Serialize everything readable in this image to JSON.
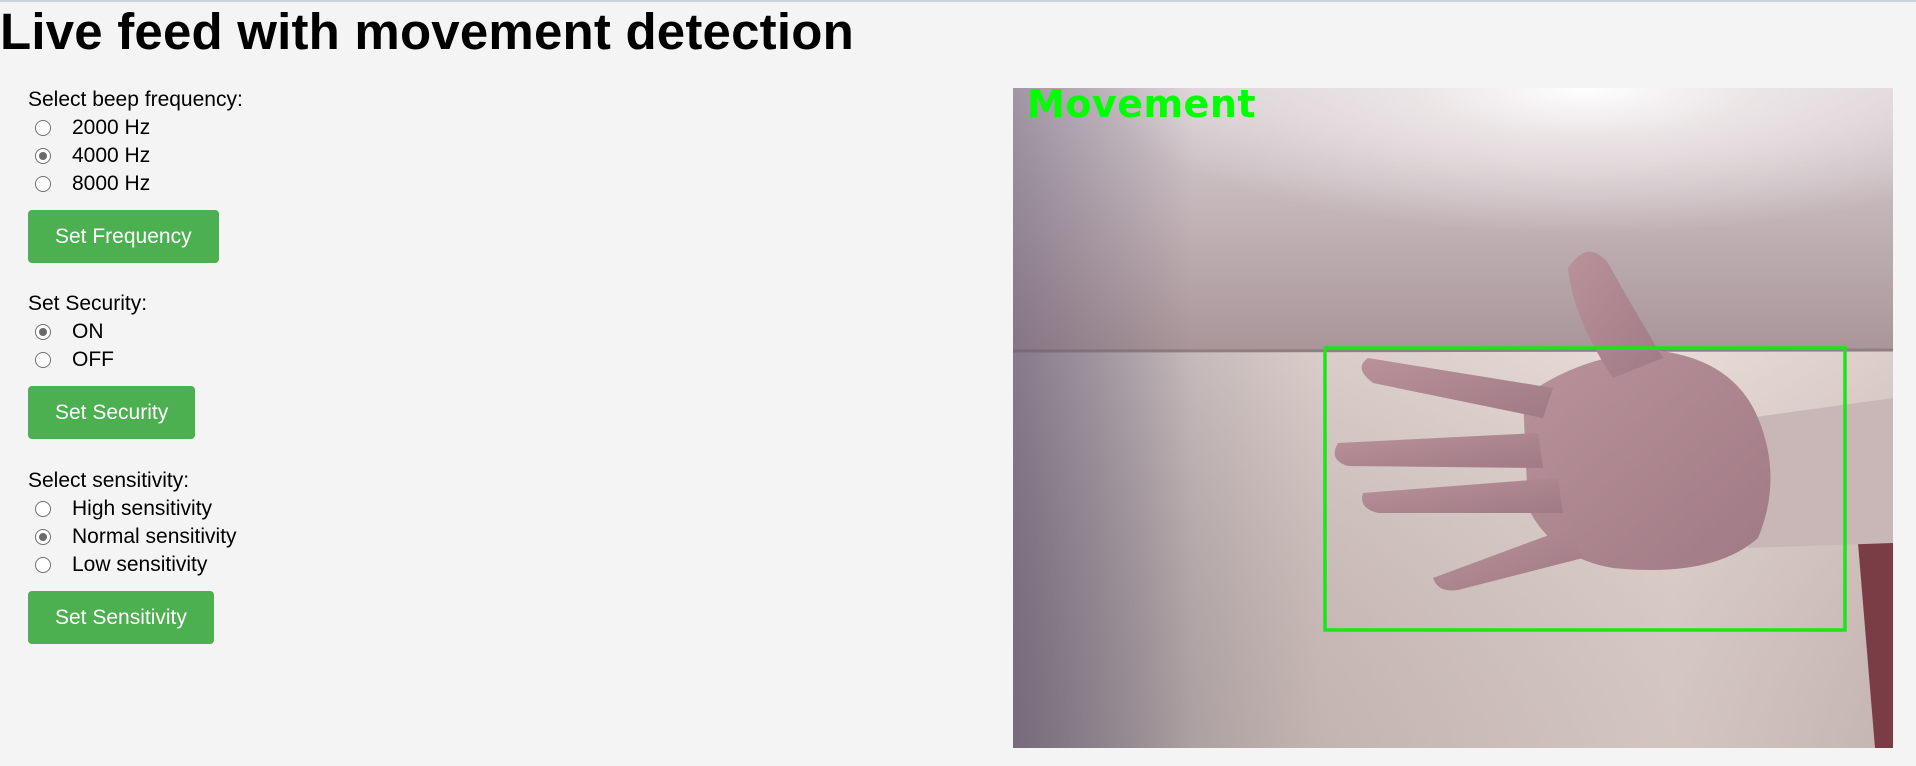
{
  "page": {
    "title": "Live feed with movement detection"
  },
  "frequency": {
    "label": "Select beep frequency:",
    "options": [
      "2000 Hz",
      "4000 Hz",
      "8000 Hz"
    ],
    "selected": "4000 Hz",
    "button": "Set Frequency"
  },
  "security": {
    "label": "Set Security:",
    "options": [
      "ON",
      "OFF"
    ],
    "selected": "ON",
    "button": "Set Security"
  },
  "sensitivity": {
    "label": "Select sensitivity:",
    "options": [
      "High sensitivity",
      "Normal sensitivity",
      "Low sensitivity"
    ],
    "selected": "Normal sensitivity",
    "button": "Set Sensitivity"
  },
  "video": {
    "overlay_text": "Movement",
    "overlay_color": "#00ff00"
  },
  "colors": {
    "button_bg": "#4caf50",
    "page_bg": "#f4f4f4"
  }
}
